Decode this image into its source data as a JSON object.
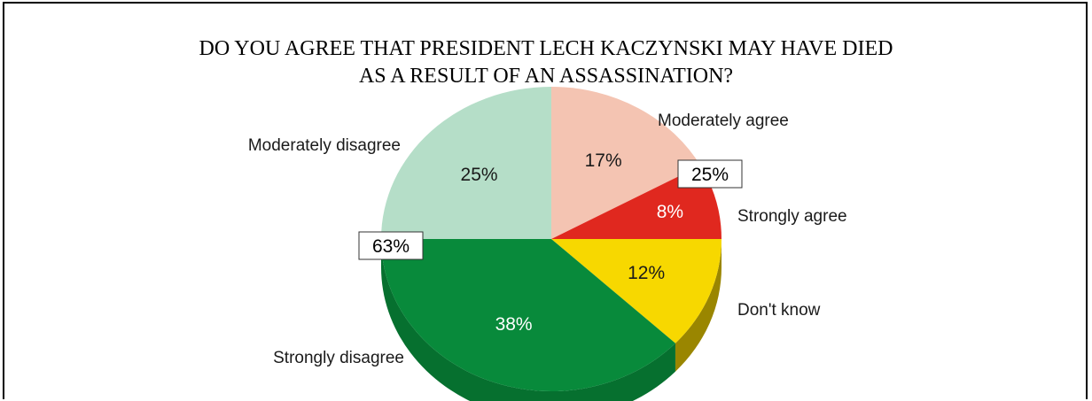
{
  "chart_data": {
    "type": "pie",
    "title_lines": [
      "DO YOU AGREE THAT PRESIDENT LECH KACZYNSKI MAY HAVE DIED",
      "AS A RESULT OF AN ASSASSINATION?"
    ],
    "slices": [
      {
        "name": "Moderately agree",
        "value": 17,
        "label": "17%",
        "color": "#f4c4b2",
        "side": "#e0a893",
        "label_color": "#1a1a1a"
      },
      {
        "name": "Strongly agree",
        "value": 8,
        "label": "8%",
        "color": "#e0281f",
        "side": "#a81c15",
        "label_color": "#ffffff"
      },
      {
        "name": "Don't know",
        "value": 12,
        "label": "12%",
        "color": "#f7d800",
        "side": "#9a8600",
        "label_color": "#1a1a1a"
      },
      {
        "name": "Strongly disagree",
        "value": 38,
        "label": "38%",
        "color": "#088a3b",
        "side": "#06702f",
        "label_color": "#ffffff"
      },
      {
        "name": "Moderately disagree",
        "value": 25,
        "label": "25%",
        "color": "#b5dec8",
        "side": "#8fbfa5",
        "label_color": "#1a1a1a"
      }
    ],
    "group_totals": [
      {
        "name": "agree",
        "label": "25%"
      },
      {
        "name": "disagree",
        "label": "63%"
      }
    ]
  }
}
